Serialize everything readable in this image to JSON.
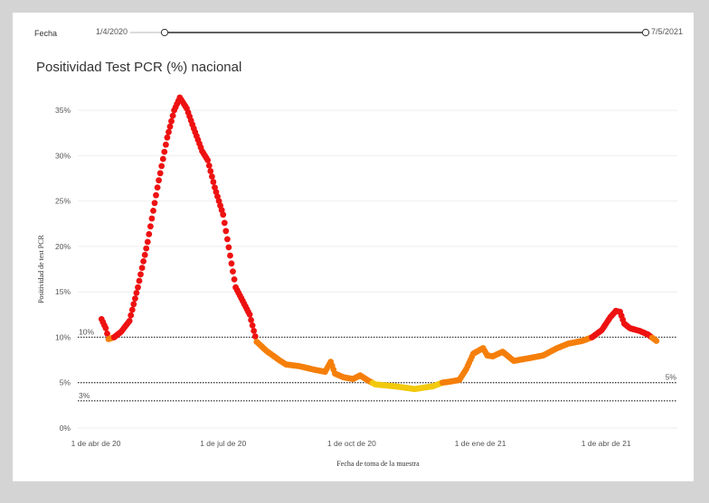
{
  "filter": {
    "label": "Fecha",
    "start_date": "1/4/2020",
    "end_date": "7/5/2021",
    "range_fraction": [
      0.0,
      1.0
    ]
  },
  "colors": {
    "red": "#ee1111",
    "orange": "#f57f0a",
    "yellow": "#f2c90c",
    "reference_line": "#444444",
    "grid": "#eeeeee"
  },
  "chart_data": {
    "type": "scatter",
    "title": "Positividad Test PCR (%) nacional",
    "xlabel": "Fecha de toma de la muestra",
    "ylabel": "Positividad de test PCR",
    "x_range": [
      "2020-03-19",
      "2021-05-22"
    ],
    "ylim": [
      0,
      37
    ],
    "y_ticks": [
      0,
      5,
      10,
      15,
      20,
      25,
      30,
      35
    ],
    "y_tick_labels": [
      "0%",
      "5%",
      "10%",
      "15%",
      "20%",
      "25%",
      "30%",
      "35%"
    ],
    "x_ticks": [
      "2020-04-01",
      "2020-07-01",
      "2020-10-01",
      "2021-01-01",
      "2021-04-01"
    ],
    "x_tick_labels": [
      "1 de abr de 20",
      "1 de jul de 20",
      "1 de oct de 20",
      "1 de ene de 21",
      "1 de abr de 21"
    ],
    "grid": true,
    "reference_lines": [
      {
        "value": 10,
        "label": "10%",
        "label_side": "left"
      },
      {
        "value": 5,
        "label": "5%",
        "label_side": "right"
      },
      {
        "value": 3,
        "label": "3%",
        "label_side": "left"
      }
    ],
    "color_thresholds": {
      "yellow_below": 5,
      "orange_below": 10
    },
    "anchors": [
      [
        "2020-04-05",
        12.0
      ],
      [
        "2020-04-08",
        11.0
      ],
      [
        "2020-04-10",
        9.8
      ],
      [
        "2020-04-14",
        10.0
      ],
      [
        "2020-04-19",
        10.6
      ],
      [
        "2020-04-25",
        11.8
      ],
      [
        "2020-05-01",
        15.5
      ],
      [
        "2020-05-08",
        20.5
      ],
      [
        "2020-05-15",
        26.5
      ],
      [
        "2020-05-22",
        32.0
      ],
      [
        "2020-05-27",
        35.0
      ],
      [
        "2020-05-31",
        36.4
      ],
      [
        "2020-06-05",
        35.2
      ],
      [
        "2020-06-10",
        33.0
      ],
      [
        "2020-06-16",
        30.5
      ],
      [
        "2020-06-20",
        29.5
      ],
      [
        "2020-06-25",
        26.5
      ],
      [
        "2020-07-01",
        23.5
      ],
      [
        "2020-07-06",
        19.0
      ],
      [
        "2020-07-10",
        15.5
      ],
      [
        "2020-07-15",
        14.0
      ],
      [
        "2020-07-20",
        12.5
      ],
      [
        "2020-07-25",
        9.5
      ],
      [
        "2020-08-01",
        8.5
      ],
      [
        "2020-08-10",
        7.5
      ],
      [
        "2020-08-15",
        7.0
      ],
      [
        "2020-08-25",
        6.8
      ],
      [
        "2020-09-05",
        6.4
      ],
      [
        "2020-09-12",
        6.2
      ],
      [
        "2020-09-16",
        7.3
      ],
      [
        "2020-09-19",
        6.0
      ],
      [
        "2020-09-25",
        5.6
      ],
      [
        "2020-10-02",
        5.4
      ],
      [
        "2020-10-07",
        5.8
      ],
      [
        "2020-10-12",
        5.3
      ],
      [
        "2020-10-18",
        4.8
      ],
      [
        "2020-11-01",
        4.6
      ],
      [
        "2020-11-15",
        4.3
      ],
      [
        "2020-11-28",
        4.6
      ],
      [
        "2020-12-05",
        5.0
      ],
      [
        "2020-12-10",
        5.1
      ],
      [
        "2020-12-17",
        5.3
      ],
      [
        "2020-12-22",
        6.5
      ],
      [
        "2020-12-27",
        8.2
      ],
      [
        "2021-01-03",
        8.8
      ],
      [
        "2021-01-06",
        8.0
      ],
      [
        "2021-01-10",
        7.9
      ],
      [
        "2021-01-17",
        8.4
      ],
      [
        "2021-01-25",
        7.4
      ],
      [
        "2021-02-05",
        7.7
      ],
      [
        "2021-02-15",
        8.0
      ],
      [
        "2021-02-25",
        8.8
      ],
      [
        "2021-03-05",
        9.3
      ],
      [
        "2021-03-15",
        9.6
      ],
      [
        "2021-03-22",
        10.0
      ],
      [
        "2021-03-29",
        10.8
      ],
      [
        "2021-04-04",
        12.2
      ],
      [
        "2021-04-08",
        12.9
      ],
      [
        "2021-04-11",
        12.8
      ],
      [
        "2021-04-14",
        11.5
      ],
      [
        "2021-04-18",
        11.0
      ],
      [
        "2021-04-25",
        10.7
      ],
      [
        "2021-05-01",
        10.3
      ],
      [
        "2021-05-07",
        9.6
      ]
    ]
  }
}
